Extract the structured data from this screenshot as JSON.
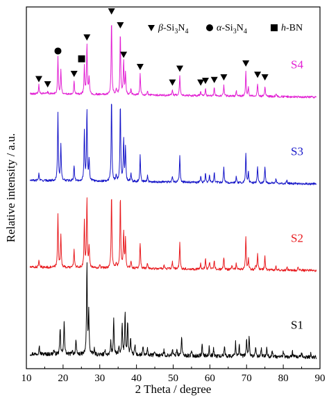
{
  "chart_data": {
    "type": "line",
    "xlabel": "2 Theta / degree",
    "ylabel": "Relative intensity / a.u.",
    "xlim": [
      10,
      90
    ],
    "x_ticks": [
      10,
      20,
      30,
      40,
      50,
      60,
      70,
      80,
      90
    ],
    "y_ticks_shown": false,
    "grid": false,
    "legend_placement": "top-right",
    "legend": [
      {
        "symbol": "triangle-down",
        "phase_prefix": "β-Si",
        "sub1": "3",
        "mid": "N",
        "sub2": "4",
        "suffix": ""
      },
      {
        "symbol": "circle",
        "phase_prefix": "α-Si",
        "sub1": "3",
        "mid": "N",
        "sub2": "4",
        "suffix": ""
      },
      {
        "symbol": "square",
        "phase_prefix": "h-BN",
        "sub1": "",
        "mid": "",
        "sub2": "",
        "suffix": ""
      }
    ],
    "series": [
      {
        "name": "S1",
        "color": "#000000",
        "offset": 0.0,
        "noise": 0.022,
        "peaks": [
          [
            13.5,
            0.1
          ],
          [
            17.5,
            0.05
          ],
          [
            19.2,
            0.3
          ],
          [
            20.3,
            0.4
          ],
          [
            22.5,
            0.05
          ],
          [
            23.5,
            0.16
          ],
          [
            26.5,
            1.05
          ],
          [
            27.0,
            0.48
          ],
          [
            28.5,
            0.06
          ],
          [
            31.5,
            0.05
          ],
          [
            33.0,
            0.15
          ],
          [
            33.8,
            0.42
          ],
          [
            35.2,
            0.1
          ],
          [
            36.1,
            0.36
          ],
          [
            36.9,
            0.5
          ],
          [
            37.6,
            0.38
          ],
          [
            38.4,
            0.18
          ],
          [
            39.6,
            0.12
          ],
          [
            41.8,
            0.1
          ],
          [
            43.0,
            0.07
          ],
          [
            45.0,
            0.05
          ],
          [
            47.5,
            0.06
          ],
          [
            49.8,
            0.07
          ],
          [
            51.0,
            0.08
          ],
          [
            52.3,
            0.22
          ],
          [
            55.0,
            0.05
          ],
          [
            57.9,
            0.13
          ],
          [
            59.8,
            0.1
          ],
          [
            61.0,
            0.08
          ],
          [
            64.0,
            0.12
          ],
          [
            67.0,
            0.16
          ],
          [
            68.0,
            0.14
          ],
          [
            70.0,
            0.19
          ],
          [
            70.7,
            0.22
          ],
          [
            72.5,
            0.1
          ],
          [
            74.0,
            0.09
          ],
          [
            75.5,
            0.12
          ],
          [
            77.0,
            0.07
          ],
          [
            80.0,
            0.06
          ],
          [
            82.5,
            0.06
          ],
          [
            85.0,
            0.04
          ],
          [
            87.5,
            0.04
          ]
        ]
      },
      {
        "name": "S2",
        "color": "#e8191d",
        "offset": 1.0,
        "noise": 0.014,
        "peaks": [
          [
            13.4,
            0.08
          ],
          [
            18.6,
            0.62
          ],
          [
            19.4,
            0.38
          ],
          [
            23.0,
            0.22
          ],
          [
            25.8,
            0.55
          ],
          [
            26.5,
            0.8
          ],
          [
            27.1,
            0.25
          ],
          [
            30.0,
            0.05
          ],
          [
            33.2,
            0.88
          ],
          [
            34.5,
            0.06
          ],
          [
            35.6,
            0.84
          ],
          [
            36.5,
            0.42
          ],
          [
            37.0,
            0.35
          ],
          [
            38.5,
            0.08
          ],
          [
            41.0,
            0.3
          ],
          [
            43.0,
            0.06
          ],
          [
            47.5,
            0.05
          ],
          [
            49.8,
            0.08
          ],
          [
            51.8,
            0.3
          ],
          [
            57.5,
            0.06
          ],
          [
            58.8,
            0.12
          ],
          [
            59.9,
            0.08
          ],
          [
            61.2,
            0.1
          ],
          [
            63.8,
            0.14
          ],
          [
            66.0,
            0.05
          ],
          [
            67.2,
            0.07
          ],
          [
            69.8,
            0.38
          ],
          [
            70.5,
            0.12
          ],
          [
            72.5,
            0.05
          ],
          [
            73.0,
            0.18
          ],
          [
            75.0,
            0.16
          ],
          [
            78.0,
            0.05
          ],
          [
            81.0,
            0.04
          ],
          [
            84.0,
            0.04
          ]
        ]
      },
      {
        "name": "S3",
        "color": "#1515c8",
        "offset": 2.0,
        "noise": 0.013,
        "peaks": [
          [
            13.4,
            0.08
          ],
          [
            18.6,
            0.78
          ],
          [
            19.4,
            0.42
          ],
          [
            23.0,
            0.18
          ],
          [
            25.8,
            0.58
          ],
          [
            26.5,
            0.82
          ],
          [
            27.1,
            0.25
          ],
          [
            33.2,
            0.98
          ],
          [
            34.5,
            0.07
          ],
          [
            35.6,
            0.92
          ],
          [
            36.5,
            0.48
          ],
          [
            37.0,
            0.38
          ],
          [
            38.5,
            0.1
          ],
          [
            41.0,
            0.3
          ],
          [
            43.0,
            0.07
          ],
          [
            49.8,
            0.07
          ],
          [
            51.8,
            0.3
          ],
          [
            57.5,
            0.07
          ],
          [
            58.8,
            0.1
          ],
          [
            59.9,
            0.08
          ],
          [
            61.2,
            0.12
          ],
          [
            63.8,
            0.18
          ],
          [
            67.2,
            0.08
          ],
          [
            69.8,
            0.35
          ],
          [
            70.5,
            0.12
          ],
          [
            73.0,
            0.19
          ],
          [
            75.0,
            0.19
          ],
          [
            78.0,
            0.05
          ],
          [
            81.0,
            0.04
          ]
        ]
      },
      {
        "name": "S4",
        "color": "#e21fd3",
        "offset": 3.0,
        "noise": 0.012,
        "peaks": [
          [
            13.4,
            0.1
          ],
          [
            15.8,
            0.04
          ],
          [
            18.6,
            0.42
          ],
          [
            19.4,
            0.28
          ],
          [
            23.0,
            0.16
          ],
          [
            25.8,
            0.33
          ],
          [
            26.5,
            0.58
          ],
          [
            27.1,
            0.2
          ],
          [
            33.2,
            0.88
          ],
          [
            34.5,
            0.07
          ],
          [
            35.6,
            0.72
          ],
          [
            36.5,
            0.38
          ],
          [
            37.0,
            0.25
          ],
          [
            38.5,
            0.07
          ],
          [
            41.0,
            0.24
          ],
          [
            43.0,
            0.05
          ],
          [
            49.8,
            0.06
          ],
          [
            51.8,
            0.22
          ],
          [
            57.5,
            0.06
          ],
          [
            58.8,
            0.08
          ],
          [
            61.2,
            0.09
          ],
          [
            63.8,
            0.12
          ],
          [
            67.2,
            0.06
          ],
          [
            69.8,
            0.28
          ],
          [
            70.5,
            0.1
          ],
          [
            73.0,
            0.15
          ],
          [
            75.0,
            0.12
          ],
          [
            78.0,
            0.04
          ]
        ]
      }
    ],
    "markers_on": "S4",
    "markers": [
      {
        "x": 13.4,
        "symbol": "triangle-down"
      },
      {
        "x": 15.8,
        "symbol": "triangle-down"
      },
      {
        "x": 18.6,
        "symbol": "circle"
      },
      {
        "x": 23.0,
        "symbol": "triangle-down"
      },
      {
        "x": 25.8,
        "symbol": "square"
      },
      {
        "x": 26.5,
        "symbol": "triangle-down"
      },
      {
        "x": 33.2,
        "symbol": "triangle-down"
      },
      {
        "x": 35.6,
        "symbol": "triangle-down"
      },
      {
        "x": 36.5,
        "symbol": "triangle-down"
      },
      {
        "x": 41.0,
        "symbol": "triangle-down"
      },
      {
        "x": 49.8,
        "symbol": "triangle-down"
      },
      {
        "x": 51.8,
        "symbol": "triangle-down"
      },
      {
        "x": 57.5,
        "symbol": "triangle-down"
      },
      {
        "x": 58.8,
        "symbol": "triangle-down"
      },
      {
        "x": 61.2,
        "symbol": "triangle-down"
      },
      {
        "x": 63.8,
        "symbol": "triangle-down"
      },
      {
        "x": 69.8,
        "symbol": "triangle-down"
      },
      {
        "x": 73.0,
        "symbol": "triangle-down"
      },
      {
        "x": 75.0,
        "symbol": "triangle-down"
      }
    ]
  }
}
